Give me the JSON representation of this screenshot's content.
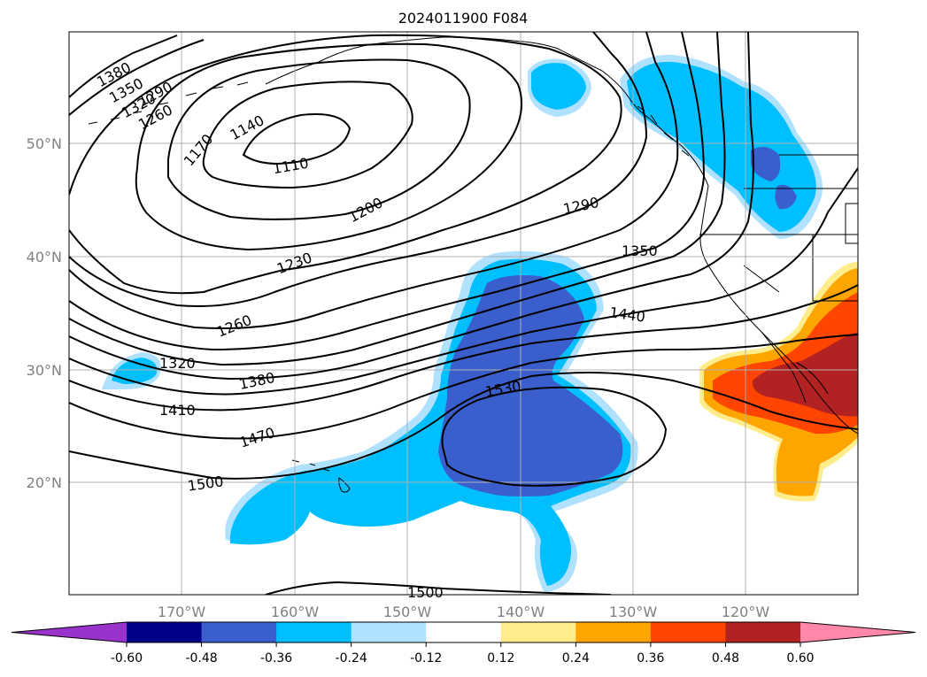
{
  "title": "2024011900 F084",
  "lat_labels": [
    "50°N",
    "40°N",
    "30°N",
    "20°N"
  ],
  "lon_labels": [
    "170°W",
    "160°W",
    "150°W",
    "140°W",
    "130°W",
    "120°W"
  ],
  "contour_labels": {
    "c1380": "1380",
    "c1350": "1350",
    "c1320a": "1320",
    "c1290a": "1290",
    "c1260a": "1260",
    "c1170": "1170",
    "c1140": "1140",
    "c1110": "1110",
    "c1200": "1200",
    "c1230": "1230",
    "c1290b": "1290",
    "c1350b": "1350",
    "c1260b": "1260",
    "c1320b": "1320",
    "c1380b": "1380",
    "c1410": "1410",
    "c1440": "1440",
    "c1470": "1470",
    "c1500a": "1500",
    "c1530": "1530",
    "c1500b": "1500"
  },
  "colorbar": {
    "ticks": [
      "-0.60",
      "-0.48",
      "-0.36",
      "-0.24",
      "-0.12",
      "0.12",
      "0.24",
      "0.36",
      "0.48",
      "0.60"
    ],
    "colors": [
      "#9933cc",
      "#000088",
      "#3a5fcd",
      "#00bfff",
      "#b0e2ff",
      "#ffffff",
      "#ffec8b",
      "#ffa500",
      "#ff4500",
      "#b22222",
      "#ff88aa"
    ]
  },
  "palette": {
    "ltblue": "#b0e2ff",
    "blue": "#00bfff",
    "dblue": "#3a5fcd",
    "yellow": "#ffec8b",
    "orange": "#ffa500",
    "redorange": "#ff4500",
    "darkred": "#b22222",
    "grid": "#b0b0b0"
  }
}
